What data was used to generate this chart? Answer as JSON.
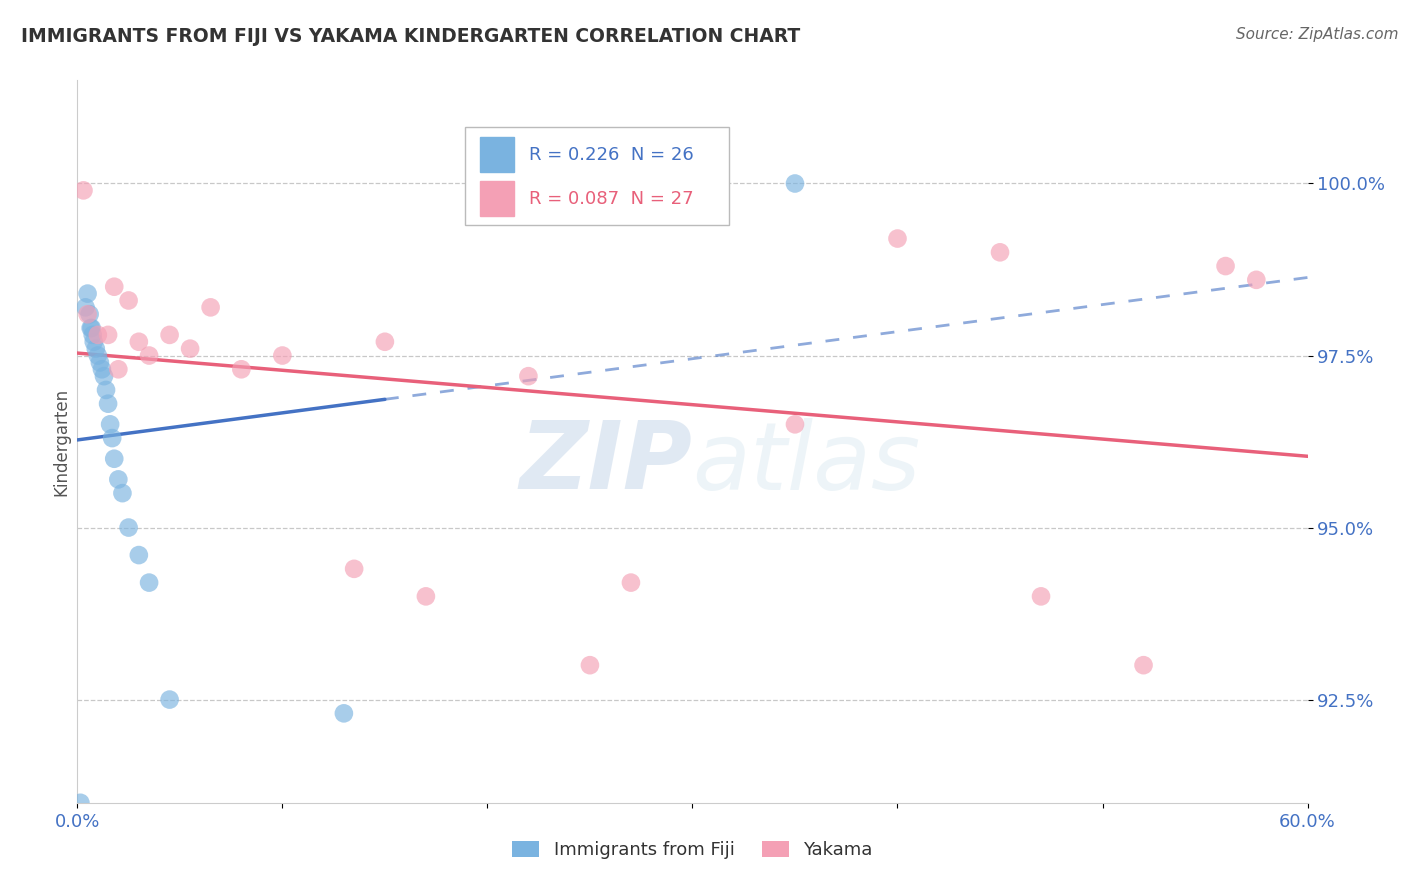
{
  "title": "IMMIGRANTS FROM FIJI VS YAKAMA KINDERGARTEN CORRELATION CHART",
  "source": "Source: ZipAtlas.com",
  "ylabel": "Kindergarten",
  "xlim": [
    0.0,
    60.0
  ],
  "ylim": [
    91.0,
    101.5
  ],
  "yticks": [
    92.5,
    95.0,
    97.5,
    100.0
  ],
  "ytick_labels": [
    "92.5%",
    "95.0%",
    "97.5%",
    "100.0%"
  ],
  "xtick_labels": [
    "0.0%",
    "60.0%"
  ],
  "blue_R": "0.226",
  "blue_N": 26,
  "pink_R": "0.087",
  "pink_N": 27,
  "blue_color": "#7ab3e0",
  "pink_color": "#f4a0b5",
  "blue_line_color": "#4472c4",
  "pink_line_color": "#e8607a",
  "legend_label_blue": "Immigrants from Fiji",
  "legend_label_pink": "Yakama",
  "blue_x": [
    0.15,
    0.4,
    0.5,
    0.6,
    0.65,
    0.7,
    0.75,
    0.8,
    0.9,
    1.0,
    1.1,
    1.2,
    1.3,
    1.4,
    1.5,
    1.6,
    1.7,
    1.8,
    2.0,
    2.2,
    2.5,
    3.0,
    3.5,
    4.5,
    13.0,
    35.0
  ],
  "blue_y": [
    91.0,
    98.2,
    98.4,
    98.1,
    97.9,
    97.9,
    97.8,
    97.7,
    97.6,
    97.5,
    97.4,
    97.3,
    97.2,
    97.0,
    96.8,
    96.5,
    96.3,
    96.0,
    95.7,
    95.5,
    95.0,
    94.6,
    94.2,
    92.5,
    92.3,
    100.0
  ],
  "pink_x": [
    0.3,
    0.5,
    1.0,
    1.5,
    1.8,
    2.0,
    2.5,
    3.0,
    3.5,
    4.5,
    5.5,
    6.5,
    8.0,
    10.0,
    13.5,
    15.0,
    17.0,
    22.0,
    27.0,
    25.0,
    35.0,
    40.0,
    45.0,
    47.0,
    52.0,
    56.0,
    57.5
  ],
  "pink_y": [
    99.9,
    98.1,
    97.8,
    97.8,
    98.5,
    97.3,
    98.3,
    97.7,
    97.5,
    97.8,
    97.6,
    98.2,
    97.3,
    97.5,
    94.4,
    97.7,
    94.0,
    97.2,
    94.2,
    93.0,
    96.5,
    99.2,
    99.0,
    94.0,
    93.0,
    98.8,
    98.6
  ],
  "solid_end_x": 15.0,
  "dashed_start_x": 15.0,
  "dashed_end_x": 60.0
}
